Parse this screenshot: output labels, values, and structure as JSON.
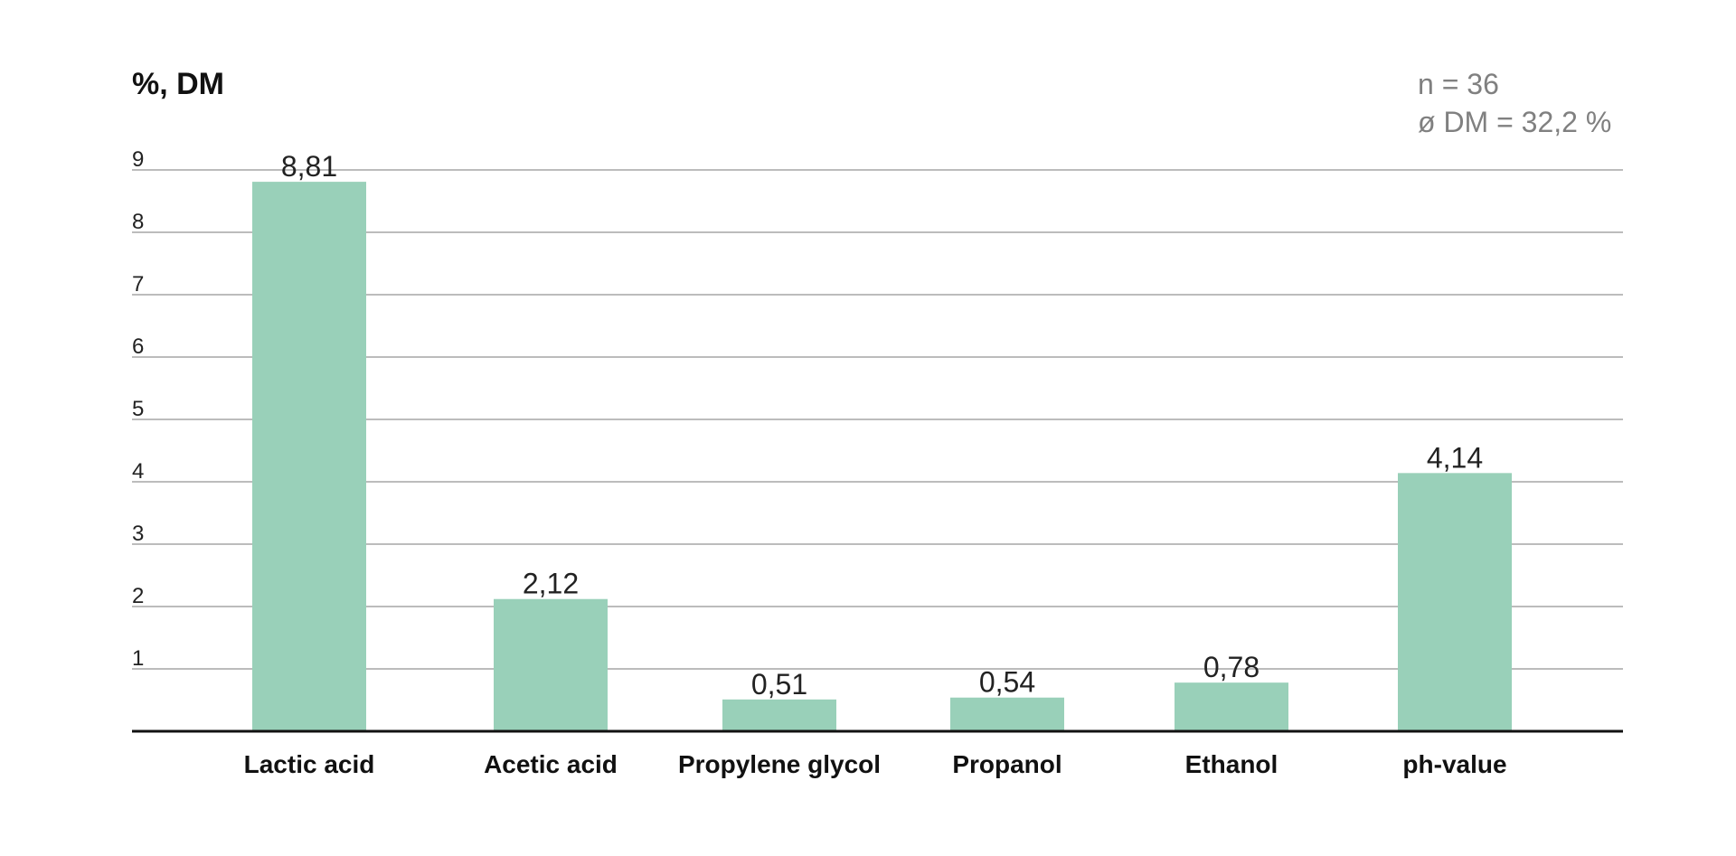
{
  "chart_data": {
    "type": "bar",
    "ylabel": "%, DM",
    "notes": [
      "n = 36",
      "ø DM = 32,2 %"
    ],
    "categories": [
      "Lactic acid",
      "Acetic acid",
      "Propylene glycol",
      "Propanol",
      "Ethanol",
      "ph-value"
    ],
    "values": [
      8.81,
      2.12,
      0.51,
      0.54,
      0.78,
      4.14
    ],
    "value_labels": [
      "8,81",
      "2,12",
      "0,51",
      "0,54",
      "0,78",
      "4,14"
    ],
    "yticks": [
      "1",
      "2",
      "3",
      "4",
      "5",
      "6",
      "7",
      "8",
      "9"
    ],
    "ylim": [
      0,
      9
    ],
    "grid": true,
    "bar_color": "#99d0b9"
  }
}
